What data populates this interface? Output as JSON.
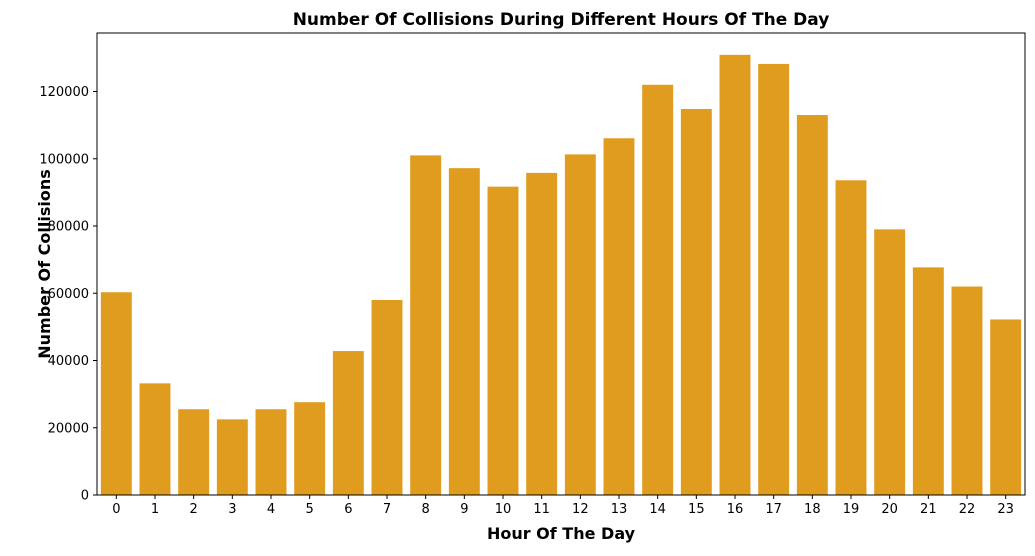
{
  "chart_data": {
    "type": "bar",
    "title": "Number Of Collisions During Different Hours Of The Day",
    "xlabel": "Hour Of The Day",
    "ylabel": "Number Of Collisions",
    "categories": [
      "0",
      "1",
      "2",
      "3",
      "4",
      "5",
      "6",
      "7",
      "8",
      "9",
      "10",
      "11",
      "12",
      "13",
      "14",
      "15",
      "16",
      "17",
      "18",
      "19",
      "20",
      "21",
      "22",
      "23"
    ],
    "values": [
      60300,
      33200,
      25500,
      22500,
      25500,
      27600,
      42800,
      58000,
      101000,
      97200,
      91700,
      95800,
      101300,
      106100,
      122000,
      114800,
      130900,
      128200,
      113000,
      93600,
      79000,
      67700,
      62000,
      52200
    ],
    "yticks": [
      0,
      20000,
      40000,
      60000,
      80000,
      100000,
      120000
    ],
    "ylim": [
      0,
      137400
    ],
    "bar_color": "#e09c1f",
    "grid": false,
    "legend": false
  }
}
